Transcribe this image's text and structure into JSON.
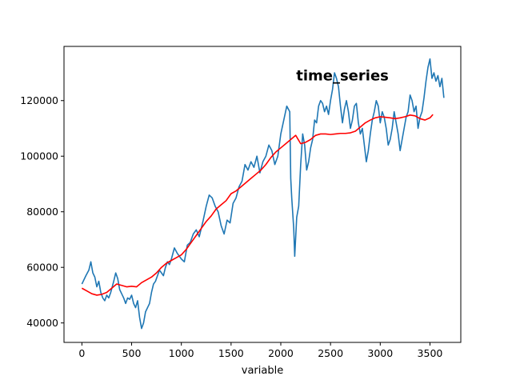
{
  "chart_data": {
    "type": "line",
    "title": "",
    "xlabel": "variable",
    "ylabel": "",
    "xlim": [
      -180,
      3810
    ],
    "ylim": [
      33000,
      139500
    ],
    "xticks": [
      0,
      500,
      1000,
      1500,
      2000,
      2500,
      3000,
      3500
    ],
    "yticks": [
      40000,
      60000,
      80000,
      100000,
      120000
    ],
    "xtick_labels": [
      "0",
      "500",
      "1000",
      "1500",
      "2000",
      "2500",
      "3000",
      "3500"
    ],
    "ytick_labels": [
      "40000",
      "60000",
      "80000",
      "100000",
      "120000"
    ],
    "grid": false,
    "legend": "none",
    "annotations": [
      {
        "text": "time_series",
        "x": 2620,
        "y": 129000
      }
    ],
    "series": [
      {
        "color": "#1f77b4",
        "points": [
          [
            0,
            54000
          ],
          [
            40,
            57000
          ],
          [
            70,
            59000
          ],
          [
            90,
            62000
          ],
          [
            110,
            58000
          ],
          [
            130,
            56500
          ],
          [
            150,
            53000
          ],
          [
            170,
            55000
          ],
          [
            190,
            51000
          ],
          [
            210,
            49000
          ],
          [
            230,
            48000
          ],
          [
            250,
            50000
          ],
          [
            270,
            49000
          ],
          [
            290,
            51000
          ],
          [
            320,
            55000
          ],
          [
            340,
            58000
          ],
          [
            360,
            56000
          ],
          [
            380,
            52000
          ],
          [
            400,
            50500
          ],
          [
            420,
            49000
          ],
          [
            440,
            47000
          ],
          [
            460,
            49000
          ],
          [
            480,
            48500
          ],
          [
            500,
            50000
          ],
          [
            520,
            47000
          ],
          [
            540,
            45500
          ],
          [
            560,
            48000
          ],
          [
            580,
            42000
          ],
          [
            600,
            38000
          ],
          [
            620,
            40000
          ],
          [
            640,
            44000
          ],
          [
            660,
            45500
          ],
          [
            680,
            47000
          ],
          [
            700,
            51000
          ],
          [
            720,
            54000
          ],
          [
            740,
            55000
          ],
          [
            760,
            57000
          ],
          [
            780,
            59000
          ],
          [
            800,
            58000
          ],
          [
            820,
            57000
          ],
          [
            840,
            60000
          ],
          [
            860,
            62000
          ],
          [
            880,
            61000
          ],
          [
            900,
            63000
          ],
          [
            930,
            67000
          ],
          [
            960,
            65000
          ],
          [
            1000,
            63000
          ],
          [
            1030,
            62000
          ],
          [
            1060,
            68000
          ],
          [
            1090,
            69000
          ],
          [
            1120,
            72000
          ],
          [
            1150,
            73500
          ],
          [
            1180,
            71000
          ],
          [
            1220,
            77000
          ],
          [
            1250,
            82000
          ],
          [
            1280,
            86000
          ],
          [
            1310,
            85000
          ],
          [
            1340,
            82000
          ],
          [
            1370,
            80000
          ],
          [
            1400,
            75000
          ],
          [
            1430,
            72000
          ],
          [
            1460,
            77000
          ],
          [
            1490,
            76000
          ],
          [
            1520,
            83000
          ],
          [
            1550,
            85000
          ],
          [
            1580,
            89000
          ],
          [
            1610,
            91000
          ],
          [
            1640,
            97000
          ],
          [
            1670,
            95000
          ],
          [
            1700,
            98000
          ],
          [
            1730,
            96000
          ],
          [
            1760,
            100000
          ],
          [
            1790,
            94000
          ],
          [
            1820,
            98000
          ],
          [
            1850,
            100000
          ],
          [
            1880,
            104000
          ],
          [
            1910,
            102000
          ],
          [
            1940,
            97000
          ],
          [
            1970,
            100000
          ],
          [
            2000,
            108000
          ],
          [
            2030,
            113000
          ],
          [
            2060,
            118000
          ],
          [
            2090,
            116000
          ],
          [
            2100,
            92000
          ],
          [
            2110,
            85000
          ],
          [
            2130,
            74000
          ],
          [
            2140,
            64000
          ],
          [
            2160,
            78000
          ],
          [
            2180,
            82000
          ],
          [
            2200,
            97000
          ],
          [
            2220,
            108000
          ],
          [
            2240,
            104000
          ],
          [
            2260,
            95000
          ],
          [
            2280,
            98000
          ],
          [
            2300,
            103000
          ],
          [
            2320,
            106000
          ],
          [
            2340,
            113000
          ],
          [
            2360,
            112000
          ],
          [
            2380,
            118000
          ],
          [
            2400,
            120000
          ],
          [
            2420,
            119000
          ],
          [
            2440,
            116000
          ],
          [
            2460,
            118000
          ],
          [
            2480,
            115000
          ],
          [
            2500,
            120000
          ],
          [
            2520,
            124000
          ],
          [
            2540,
            130000
          ],
          [
            2560,
            128000
          ],
          [
            2580,
            125000
          ],
          [
            2600,
            118000
          ],
          [
            2620,
            112000
          ],
          [
            2640,
            117000
          ],
          [
            2660,
            120000
          ],
          [
            2680,
            116000
          ],
          [
            2700,
            110000
          ],
          [
            2720,
            113000
          ],
          [
            2740,
            118000
          ],
          [
            2760,
            119000
          ],
          [
            2780,
            112000
          ],
          [
            2800,
            108000
          ],
          [
            2820,
            110000
          ],
          [
            2840,
            104000
          ],
          [
            2860,
            98000
          ],
          [
            2880,
            102000
          ],
          [
            2900,
            108000
          ],
          [
            2920,
            113000
          ],
          [
            2940,
            116000
          ],
          [
            2960,
            120000
          ],
          [
            2980,
            118000
          ],
          [
            3000,
            112000
          ],
          [
            3020,
            116000
          ],
          [
            3040,
            114000
          ],
          [
            3060,
            110000
          ],
          [
            3080,
            104000
          ],
          [
            3100,
            106000
          ],
          [
            3120,
            110000
          ],
          [
            3140,
            116000
          ],
          [
            3160,
            112000
          ],
          [
            3180,
            108000
          ],
          [
            3200,
            102000
          ],
          [
            3220,
            106000
          ],
          [
            3240,
            110000
          ],
          [
            3260,
            114000
          ],
          [
            3280,
            116000
          ],
          [
            3300,
            122000
          ],
          [
            3320,
            120000
          ],
          [
            3340,
            116000
          ],
          [
            3360,
            118000
          ],
          [
            3380,
            110000
          ],
          [
            3400,
            114000
          ],
          [
            3420,
            116000
          ],
          [
            3440,
            121000
          ],
          [
            3460,
            127000
          ],
          [
            3480,
            132000
          ],
          [
            3500,
            135000
          ],
          [
            3520,
            128000
          ],
          [
            3540,
            130000
          ],
          [
            3560,
            127000
          ],
          [
            3580,
            129000
          ],
          [
            3600,
            125000
          ],
          [
            3620,
            128000
          ],
          [
            3640,
            121000
          ]
        ]
      },
      {
        "color": "#ff0000",
        "points": [
          [
            0,
            52500
          ],
          [
            50,
            51500
          ],
          [
            100,
            50500
          ],
          [
            150,
            50000
          ],
          [
            200,
            50300
          ],
          [
            250,
            51000
          ],
          [
            300,
            52500
          ],
          [
            350,
            54000
          ],
          [
            400,
            53500
          ],
          [
            450,
            53000
          ],
          [
            500,
            53200
          ],
          [
            550,
            53000
          ],
          [
            600,
            54500
          ],
          [
            650,
            55500
          ],
          [
            700,
            56500
          ],
          [
            750,
            58000
          ],
          [
            800,
            60000
          ],
          [
            850,
            61500
          ],
          [
            900,
            62500
          ],
          [
            950,
            63500
          ],
          [
            1000,
            64500
          ],
          [
            1050,
            66500
          ],
          [
            1100,
            69000
          ],
          [
            1150,
            71500
          ],
          [
            1200,
            74000
          ],
          [
            1250,
            76500
          ],
          [
            1300,
            78500
          ],
          [
            1350,
            81000
          ],
          [
            1400,
            82500
          ],
          [
            1450,
            84000
          ],
          [
            1500,
            86500
          ],
          [
            1550,
            87500
          ],
          [
            1600,
            89000
          ],
          [
            1650,
            90500
          ],
          [
            1700,
            92000
          ],
          [
            1750,
            93500
          ],
          [
            1800,
            95000
          ],
          [
            1850,
            97000
          ],
          [
            1900,
            99500
          ],
          [
            1950,
            101500
          ],
          [
            2000,
            103000
          ],
          [
            2050,
            104500
          ],
          [
            2100,
            106000
          ],
          [
            2150,
            107500
          ],
          [
            2200,
            104500
          ],
          [
            2250,
            105000
          ],
          [
            2300,
            106000
          ],
          [
            2350,
            107500
          ],
          [
            2400,
            108000
          ],
          [
            2450,
            108000
          ],
          [
            2500,
            107800
          ],
          [
            2550,
            108000
          ],
          [
            2600,
            108200
          ],
          [
            2650,
            108200
          ],
          [
            2700,
            108400
          ],
          [
            2750,
            109000
          ],
          [
            2800,
            110500
          ],
          [
            2850,
            112000
          ],
          [
            2900,
            113000
          ],
          [
            2950,
            113800
          ],
          [
            3000,
            114200
          ],
          [
            3050,
            114000
          ],
          [
            3100,
            113800
          ],
          [
            3150,
            113500
          ],
          [
            3200,
            113800
          ],
          [
            3250,
            114200
          ],
          [
            3300,
            114800
          ],
          [
            3350,
            114500
          ],
          [
            3400,
            113500
          ],
          [
            3450,
            113000
          ],
          [
            3500,
            113800
          ],
          [
            3530,
            115000
          ]
        ]
      }
    ]
  }
}
